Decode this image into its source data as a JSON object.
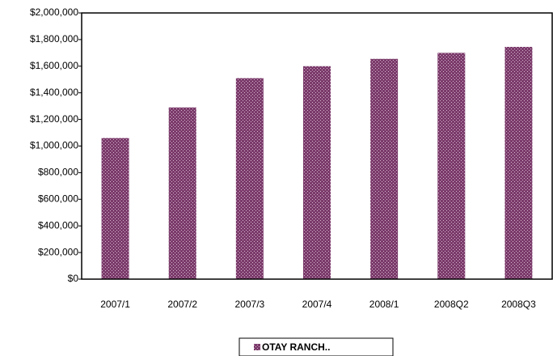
{
  "chart_data": {
    "type": "bar",
    "categories": [
      "2007/1",
      "2007/2",
      "2007/3",
      "2007/4",
      "2008/1",
      "2008Q2",
      "2008Q3"
    ],
    "series": [
      {
        "name": "OTAY RANCH..",
        "color": "#7b3b6b",
        "values": [
          1060000,
          1290000,
          1510000,
          1600000,
          1655000,
          1700000,
          1745000
        ]
      }
    ],
    "ylim": [
      0,
      2000000
    ],
    "yticks": [
      {
        "value": 0,
        "label": "$0"
      },
      {
        "value": 200000,
        "label": "$200,000"
      },
      {
        "value": 400000,
        "label": "$400,000"
      },
      {
        "value": 600000,
        "label": "$600,000"
      },
      {
        "value": 800000,
        "label": "$800,000"
      },
      {
        "value": 1000000,
        "label": "$1,000,000"
      },
      {
        "value": 1200000,
        "label": "$1,200,000"
      },
      {
        "value": 1400000,
        "label": "$1,400,000"
      },
      {
        "value": 1600000,
        "label": "$1,600,000"
      },
      {
        "value": 1800000,
        "label": "$1,800,000"
      },
      {
        "value": 2000000,
        "label": "$2,000,000"
      }
    ],
    "grid": false,
    "legend": "bottom"
  }
}
